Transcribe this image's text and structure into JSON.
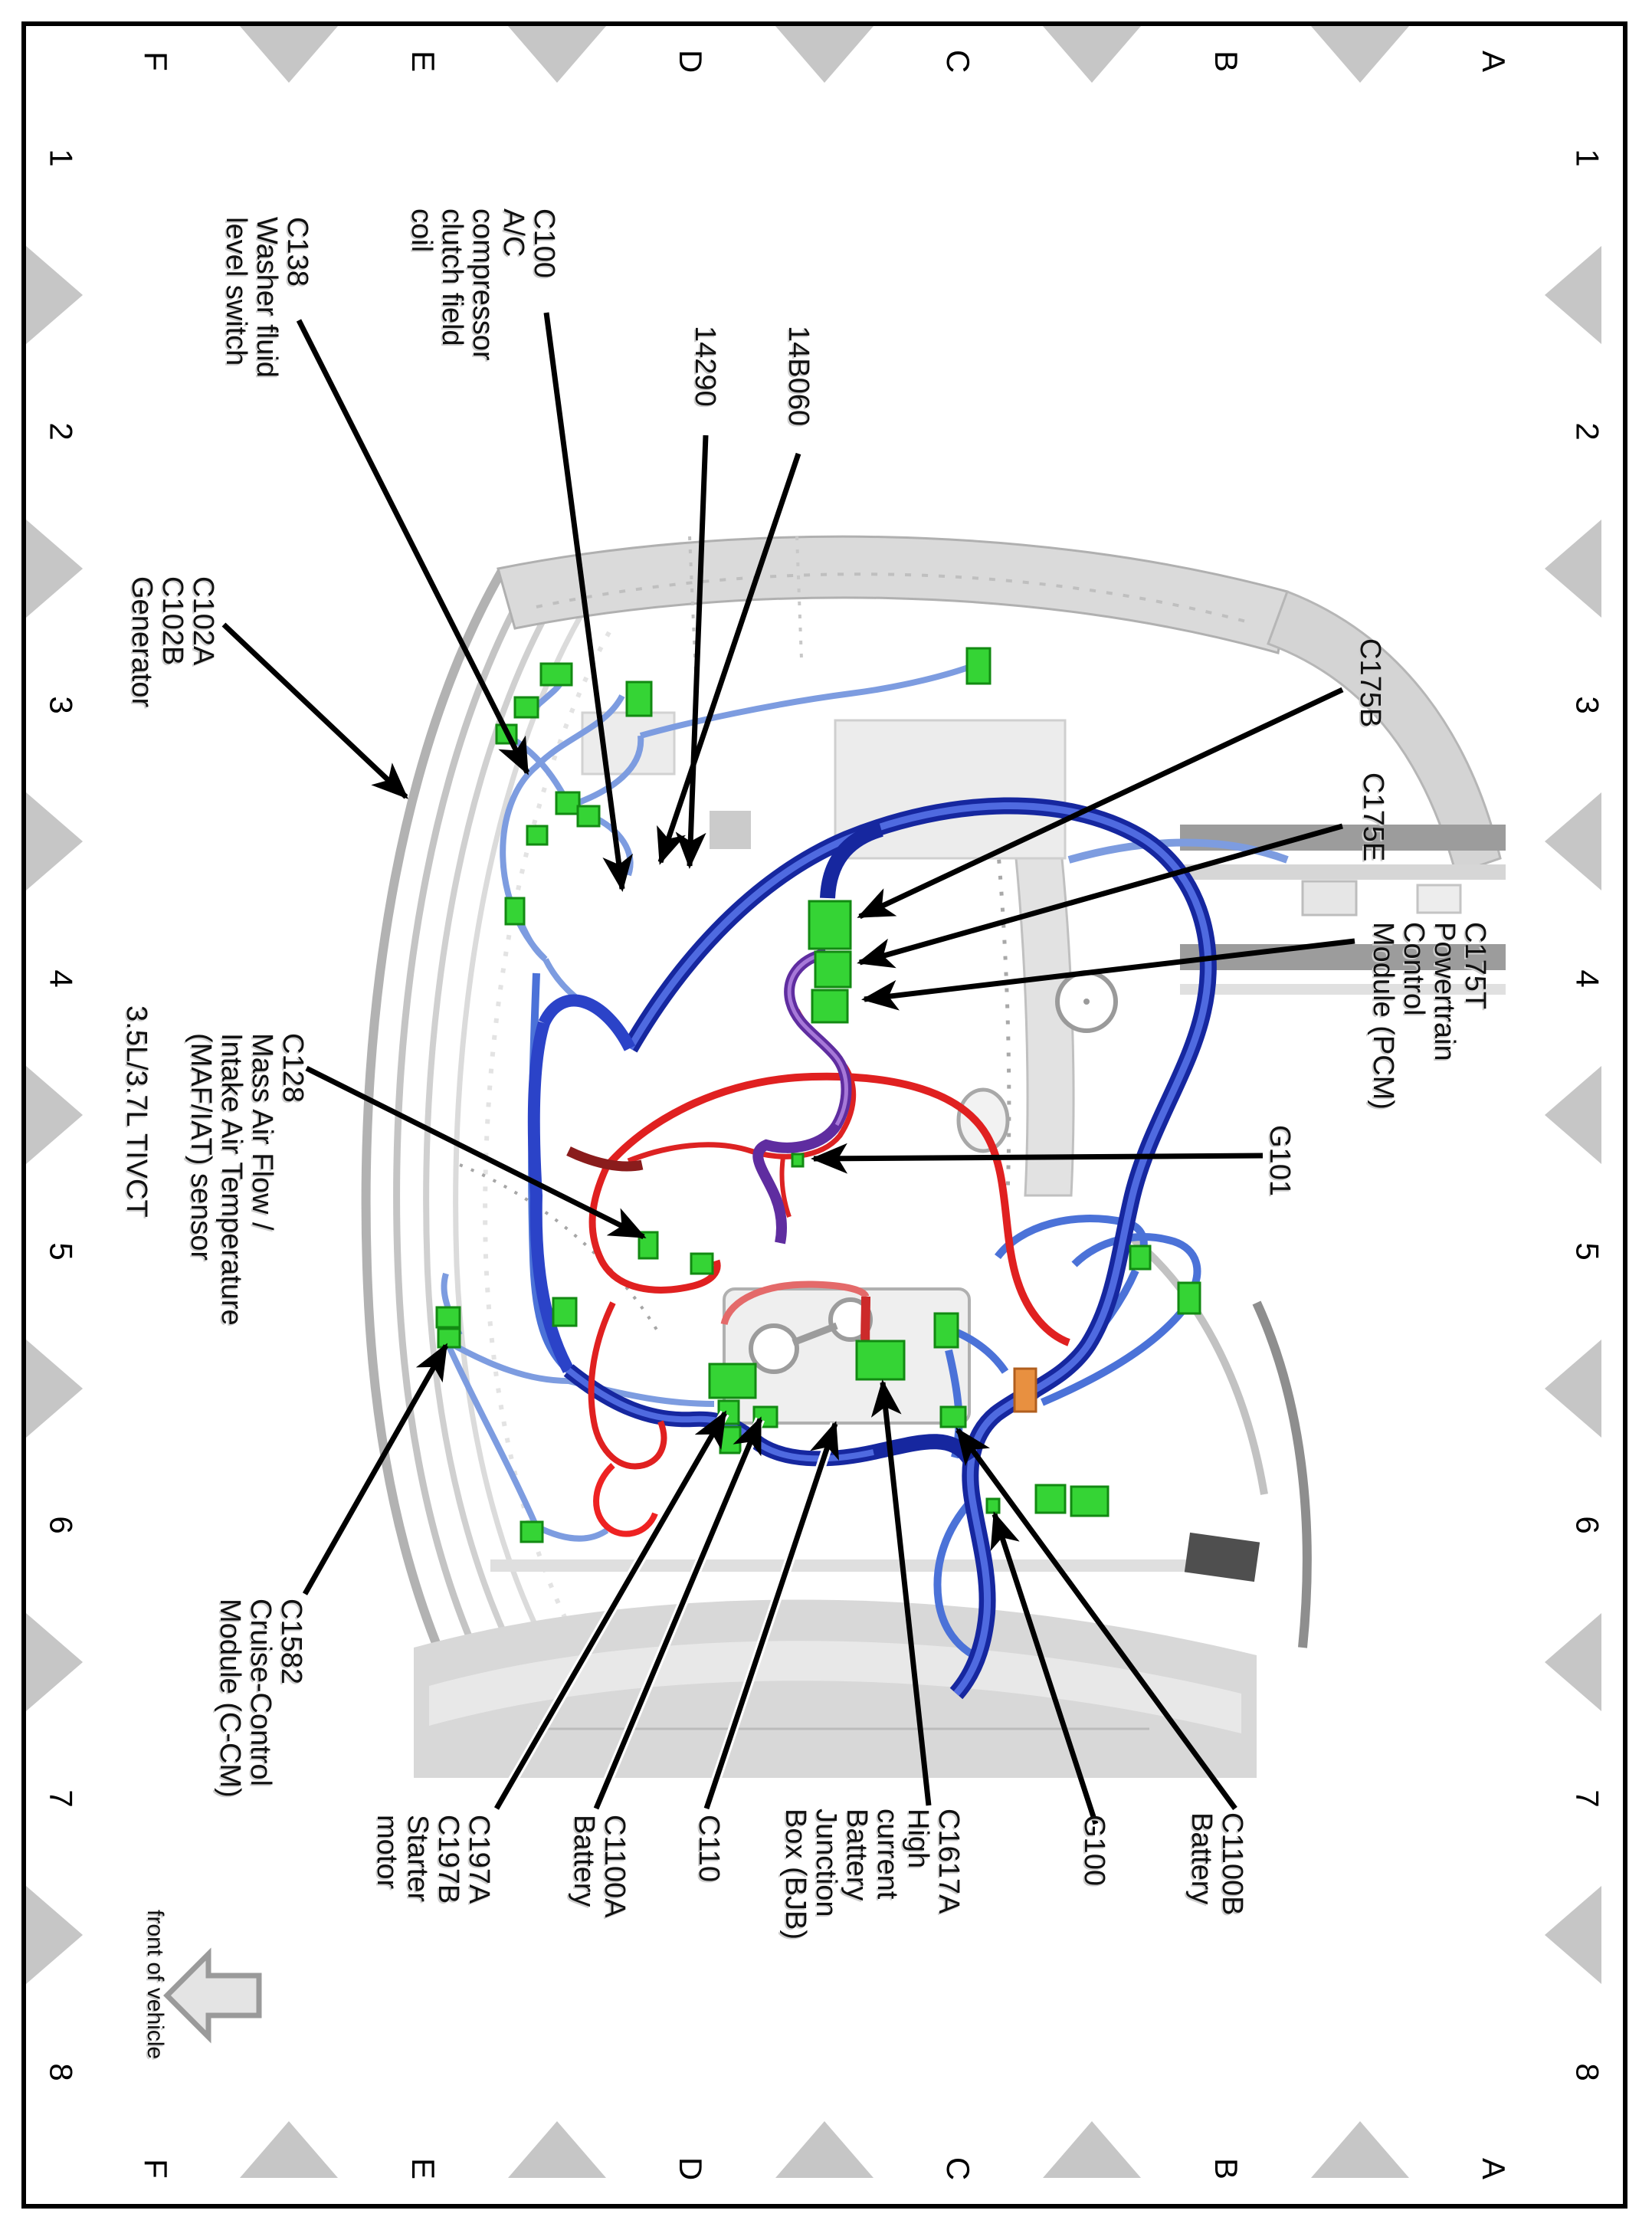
{
  "grid": {
    "col_labels": [
      "F",
      "E",
      "D",
      "C",
      "B",
      "A"
    ],
    "row_labels": [
      "1",
      "2",
      "3",
      "4",
      "5",
      "6",
      "7",
      "8"
    ]
  },
  "footer": {
    "front_of_vehicle": "front of vehicle"
  },
  "engine": {
    "variant_caption": "3.5L/3.7L TIVCT"
  },
  "callouts": {
    "c138": {
      "lines": [
        "C138",
        "Washer fluid",
        "level switch"
      ]
    },
    "c100": {
      "lines": [
        "C100",
        "A/C",
        "compressor",
        "clutch field",
        "coil"
      ]
    },
    "p14290": {
      "lines": [
        "14290"
      ]
    },
    "p14b060": {
      "lines": [
        "14B060"
      ]
    },
    "c102": {
      "lines": [
        "C102A",
        "C102B",
        "Generator"
      ]
    },
    "c175b": {
      "lines": [
        "C175B"
      ]
    },
    "c175e": {
      "lines": [
        "C175E"
      ]
    },
    "c175t": {
      "lines": [
        "C175T",
        "Powertrain",
        "Control",
        "Module (PCM)"
      ]
    },
    "g101": {
      "lines": [
        "G101"
      ]
    },
    "c128": {
      "lines": [
        "C128",
        "Mass Air Flow /",
        "Intake Air Temperature",
        "(MAF/IAT) sensor"
      ]
    },
    "c1582": {
      "lines": [
        "C1582",
        "Cruise-Control",
        "Module (C-CM)"
      ]
    },
    "c197": {
      "lines": [
        "C197A",
        "C197B",
        "Starter",
        "motor"
      ]
    },
    "c1100a": {
      "lines": [
        "C1100A",
        "Battery"
      ]
    },
    "c110": {
      "lines": [
        "C110"
      ]
    },
    "c1617a": {
      "lines": [
        "C1617A",
        "High",
        "current",
        "Battery",
        "Junction",
        "Box (BJB)"
      ]
    },
    "g100": {
      "lines": [
        "G100"
      ]
    },
    "c1100b": {
      "lines": [
        "C1100B",
        "Battery"
      ]
    }
  },
  "colors": {
    "harness_dark_blue": "#1b2fb4",
    "harness_blue_highlight": "#4f6ae0",
    "harness_light_blue": "#7d9ce0",
    "harness_red": "#e02020",
    "harness_dark_red": "#8a1c1c",
    "harness_purple": "#5f2da0",
    "connector_green": "#35d435",
    "connector_orange": "#e89040",
    "grid_triangle_gray": "#c6c6c6",
    "structure_gray": "#c9c9c9"
  }
}
